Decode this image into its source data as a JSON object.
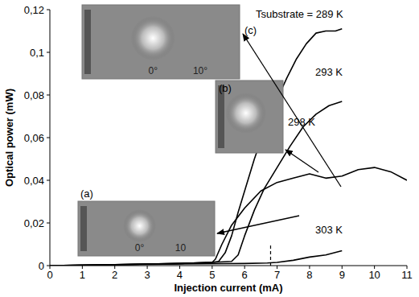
{
  "chart_data": {
    "type": "line",
    "x_label": "Injection current (mA)",
    "y_label": "Optical power (mW)",
    "xlim": [
      0,
      11
    ],
    "xticks": [
      0,
      1,
      2,
      3,
      4,
      5,
      6,
      7,
      8,
      9,
      10,
      11
    ],
    "ylim": [
      0,
      0.12
    ],
    "yticks": [
      0,
      {
        "value": 0.02,
        "label": "0,02"
      },
      {
        "value": 0.04,
        "label": "0,04"
      },
      {
        "value": 0.06,
        "label": "0,06"
      },
      {
        "value": 0.08,
        "label": "0,08"
      },
      {
        "value": 0.1,
        "label": "0,1"
      },
      {
        "value": 0.12,
        "label": "0,12"
      }
    ],
    "grid": false,
    "series": [
      {
        "name": "Tsubstrate = 289 K",
        "color": "#000000",
        "x": [
          0,
          2,
          4,
          5,
          5.2,
          5.4,
          5.6,
          5.8,
          6,
          6.3,
          6.6,
          7,
          7.3,
          7.6,
          7.9,
          8.2,
          8.5,
          8.8,
          9
        ],
        "values": [
          0,
          0.0005,
          0.001,
          0.0015,
          0.002,
          0.006,
          0.014,
          0.025,
          0.035,
          0.05,
          0.063,
          0.078,
          0.088,
          0.097,
          0.104,
          0.109,
          0.11,
          0.11,
          0.111
        ]
      },
      {
        "name": "293 K",
        "color": "#000000",
        "x": [
          0,
          2,
          4,
          5,
          5.6,
          5.8,
          6,
          6.3,
          6.6,
          7,
          7.4,
          7.8,
          8.2,
          8.6,
          9
        ],
        "values": [
          0,
          0.0005,
          0.001,
          0.0015,
          0.002,
          0.005,
          0.014,
          0.026,
          0.036,
          0.046,
          0.056,
          0.065,
          0.071,
          0.075,
          0.077
        ]
      },
      {
        "name": "298 K",
        "color": "#000000",
        "x": [
          0,
          2,
          4,
          5,
          5.1,
          5.3,
          5.6,
          6,
          6.5,
          7,
          7.5,
          8,
          8.5,
          9,
          9.5,
          10,
          10.5,
          11
        ],
        "values": [
          0,
          0.0005,
          0.001,
          0.0015,
          0.003,
          0.01,
          0.019,
          0.027,
          0.035,
          0.039,
          0.041,
          0.043,
          0.041,
          0.042,
          0.045,
          0.046,
          0.044,
          0.04
        ]
      },
      {
        "name": "303 K",
        "color": "#000000",
        "x": [
          0,
          2,
          4,
          6,
          6.7,
          7,
          7.5,
          8,
          8.5,
          9
        ],
        "values": [
          0,
          0.0004,
          0.0008,
          0.001,
          0.0012,
          0.0015,
          0.0025,
          0.004,
          0.005,
          0.007
        ]
      }
    ],
    "dashed_line": {
      "x": 6.8,
      "y": [
        0,
        0.01
      ]
    },
    "insets": [
      {
        "label": "(a)",
        "texts": [
          "0°",
          "10"
        ]
      },
      {
        "label": "(b)"
      },
      {
        "label": "(c)",
        "texts": [
          "0°",
          "10°"
        ]
      }
    ]
  }
}
